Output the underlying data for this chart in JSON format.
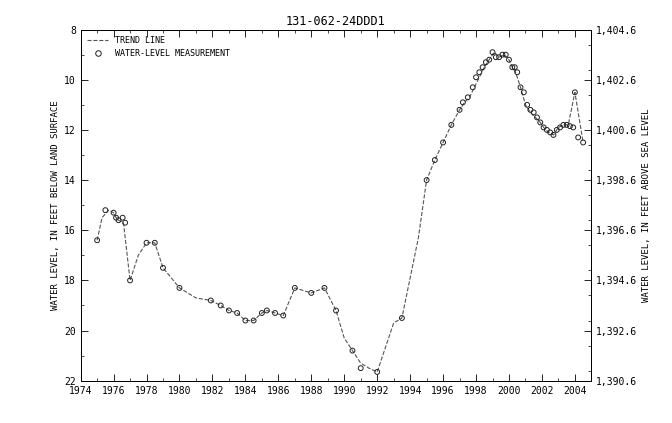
{
  "title": "131-062-24DDD1",
  "ylabel_left": "WATER LEVEL, IN FEET BELOW LAND SURFACE",
  "ylabel_right": "WATER LEVEL, IN FEET ABOVE SEA LEVEL",
  "ylim_left": [
    8,
    22
  ],
  "ylim_right": [
    1390.6,
    1404.6
  ],
  "xlim": [
    1974,
    2005
  ],
  "xticks": [
    1974,
    1976,
    1978,
    1980,
    1982,
    1984,
    1986,
    1988,
    1990,
    1992,
    1994,
    1996,
    1998,
    2000,
    2002,
    2004
  ],
  "yticks_left": [
    8,
    10,
    12,
    14,
    16,
    18,
    20,
    22
  ],
  "yticks_right": [
    1390.6,
    1392.6,
    1394.6,
    1396.6,
    1398.6,
    1400.6,
    1402.6,
    1404.6
  ],
  "trend_x": [
    1975.0,
    1975.3,
    1975.7,
    1976.0,
    1976.15,
    1976.3,
    1976.6,
    1977.0,
    1977.5,
    1978.0,
    1978.5,
    1979.0,
    1980.0,
    1981.0,
    1981.9,
    1982.5,
    1983.0,
    1983.5,
    1984.0,
    1984.5,
    1985.0,
    1985.3,
    1985.8,
    1986.3,
    1987.0,
    1988.0,
    1988.8,
    1989.5,
    1990.0,
    1990.5,
    1991.0,
    1991.5,
    1992.0,
    1993.0,
    1993.5,
    1994.5,
    1995.0,
    1995.5,
    1996.0,
    1996.5,
    1997.0,
    1997.3,
    1997.6,
    1997.9,
    1998.2,
    1998.5,
    1998.8,
    1999.1,
    1999.4,
    1999.7,
    2000.0,
    2000.2,
    2000.4,
    2000.7,
    2001.0,
    2001.3,
    2001.6,
    2001.9,
    2002.1,
    2002.4,
    2002.7,
    2003.0,
    2003.3,
    2003.6,
    2004.0,
    2004.5
  ],
  "trend_y": [
    16.4,
    15.5,
    15.2,
    15.3,
    15.5,
    15.6,
    15.7,
    18.0,
    17.0,
    16.5,
    16.5,
    17.5,
    18.3,
    18.7,
    18.8,
    19.0,
    19.2,
    19.3,
    19.6,
    19.6,
    19.3,
    19.2,
    19.3,
    19.4,
    18.3,
    18.5,
    18.3,
    19.2,
    20.3,
    20.8,
    21.3,
    21.5,
    21.65,
    19.7,
    19.5,
    16.3,
    14.0,
    13.2,
    12.5,
    11.8,
    11.2,
    10.9,
    10.7,
    10.3,
    9.9,
    9.5,
    9.2,
    8.9,
    9.1,
    9.0,
    9.2,
    9.5,
    9.7,
    10.3,
    11.0,
    11.3,
    11.5,
    11.7,
    11.9,
    12.1,
    12.2,
    11.9,
    11.8,
    11.8,
    10.5,
    12.5
  ],
  "scatter_x": [
    1975.0,
    1975.5,
    1976.0,
    1976.15,
    1976.3,
    1976.55,
    1976.7,
    1977.0,
    1978.0,
    1978.5,
    1979.0,
    1980.0,
    1981.9,
    1982.5,
    1983.0,
    1983.5,
    1984.0,
    1984.5,
    1985.0,
    1985.3,
    1985.8,
    1986.3,
    1987.0,
    1988.0,
    1988.8,
    1989.5,
    1990.5,
    1991.0,
    1992.0,
    1993.5,
    1995.0,
    1995.5,
    1996.0,
    1996.5,
    1997.0,
    1997.2,
    1997.5,
    1997.8,
    1998.0,
    1998.2,
    1998.4,
    1998.6,
    1998.8,
    1999.0,
    1999.2,
    1999.4,
    1999.6,
    1999.8,
    2000.0,
    2000.2,
    2000.35,
    2000.5,
    2000.7,
    2000.9,
    2001.1,
    2001.3,
    2001.5,
    2001.7,
    2001.9,
    2002.1,
    2002.3,
    2002.5,
    2002.7,
    2002.9,
    2003.1,
    2003.3,
    2003.5,
    2003.7,
    2003.9,
    2004.0,
    2004.2,
    2004.5
  ],
  "scatter_y": [
    16.4,
    15.2,
    15.3,
    15.5,
    15.6,
    15.5,
    15.7,
    18.0,
    16.5,
    16.5,
    17.5,
    18.3,
    18.8,
    19.0,
    19.2,
    19.3,
    19.6,
    19.6,
    19.3,
    19.2,
    19.3,
    19.4,
    18.3,
    18.5,
    18.3,
    19.2,
    20.8,
    21.5,
    21.65,
    19.5,
    14.0,
    13.2,
    12.5,
    11.8,
    11.2,
    10.9,
    10.7,
    10.3,
    9.9,
    9.7,
    9.5,
    9.3,
    9.2,
    8.9,
    9.1,
    9.1,
    9.0,
    9.0,
    9.2,
    9.5,
    9.5,
    9.7,
    10.3,
    10.5,
    11.0,
    11.2,
    11.3,
    11.5,
    11.7,
    11.9,
    12.0,
    12.1,
    12.2,
    12.0,
    11.9,
    11.8,
    11.8,
    11.85,
    11.9,
    10.5,
    12.3,
    12.5
  ],
  "land_surface_elevation": 1412.6,
  "background_color": "#ffffff",
  "line_color": "#555555",
  "marker_color": "#222222",
  "marker_size": 3.5
}
